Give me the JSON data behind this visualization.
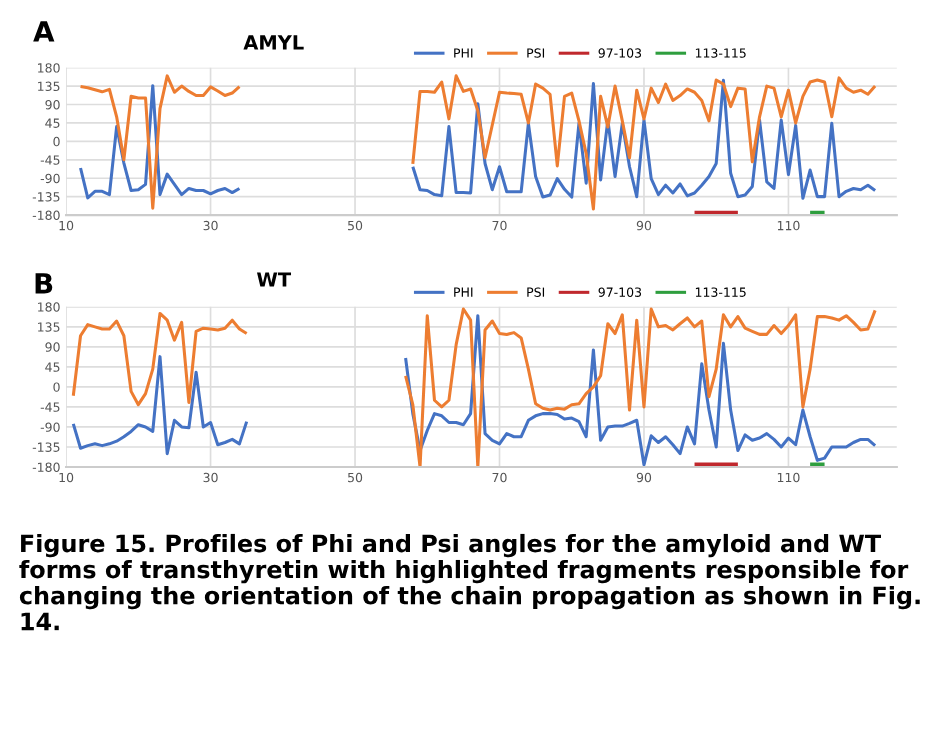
{
  "chart_data": [
    {
      "type": "line",
      "title": "AMYL",
      "annotations": [
        "A"
      ],
      "xlim": [
        10,
        125
      ],
      "xticks": [
        10,
        30,
        50,
        70,
        90,
        110
      ],
      "ylim": [
        -180,
        180
      ],
      "yticks": [
        -180,
        -135,
        -90,
        -45,
        0,
        45,
        90,
        135,
        180
      ],
      "grid": true,
      "legend": "top",
      "marker": "none",
      "line_style": "solid",
      "series": [
        {
          "name": "PHI",
          "color": "#4472c4",
          "x": [
            12,
            13,
            14,
            15,
            16,
            17,
            18,
            19,
            20,
            21,
            22,
            23,
            24,
            25,
            26,
            27,
            28,
            29,
            30,
            31,
            32,
            33,
            34,
            35,
            58,
            59,
            60,
            61,
            62,
            63,
            64,
            65,
            66,
            67,
            68,
            69,
            70,
            71,
            72,
            73,
            74,
            75,
            76,
            77,
            78,
            79,
            80,
            81,
            82,
            83,
            84,
            85,
            86,
            87,
            88,
            89,
            90,
            91,
            92,
            93,
            94,
            95,
            96,
            97,
            98,
            99,
            100,
            101,
            102,
            103,
            104,
            105,
            106,
            107,
            108,
            109,
            110,
            111,
            112,
            113,
            114,
            115,
            116,
            117,
            118,
            119,
            120,
            121,
            122
          ],
          "values": [
            -65,
            -138,
            -122,
            -122,
            -130,
            36,
            -53,
            -120,
            -118,
            -105,
            136,
            -130,
            -80,
            -105,
            -130,
            -115,
            -120,
            -120,
            -128,
            -120,
            -115,
            -125,
            -115,
            null,
            -62,
            -118,
            -120,
            -130,
            -133,
            36,
            -125,
            -125,
            -126,
            92,
            -54,
            -118,
            -62,
            -123,
            -123,
            -123,
            44,
            -86,
            -136,
            -131,
            -91,
            -117,
            -136,
            44,
            -102,
            141,
            -94,
            52,
            -86,
            44,
            -62,
            -135,
            52,
            -91,
            -130,
            -107,
            -126,
            -104,
            -133,
            -126,
            -107,
            -86,
            -54,
            149,
            -78,
            -135,
            -131,
            -110,
            52,
            -99,
            -115,
            52,
            -81,
            39,
            -139,
            -70,
            -135,
            -135,
            44,
            -135,
            -122,
            -115,
            -118,
            -107,
            -120
          ]
        },
        {
          "name": "PSI",
          "color": "#ed7d31",
          "x": [
            12,
            13,
            14,
            15,
            16,
            17,
            18,
            19,
            20,
            21,
            22,
            23,
            24,
            25,
            26,
            27,
            28,
            29,
            30,
            31,
            32,
            33,
            34,
            35,
            58,
            59,
            60,
            61,
            62,
            63,
            64,
            65,
            66,
            67,
            68,
            69,
            70,
            71,
            72,
            73,
            74,
            75,
            76,
            77,
            78,
            79,
            80,
            81,
            82,
            83,
            84,
            85,
            86,
            87,
            88,
            89,
            90,
            91,
            92,
            93,
            94,
            95,
            96,
            97,
            98,
            99,
            100,
            101,
            102,
            103,
            104,
            105,
            106,
            107,
            108,
            109,
            110,
            111,
            112,
            113,
            114,
            115,
            116,
            117,
            118,
            119,
            120,
            121,
            122
          ],
          "values": [
            134,
            131,
            126,
            121,
            127,
            60,
            -45,
            110,
            106,
            106,
            -163,
            80,
            160,
            120,
            135,
            122,
            112,
            112,
            133,
            123,
            112,
            118,
            134,
            null,
            -55,
            122,
            122,
            120,
            145,
            55,
            160,
            122,
            128,
            75,
            -40,
            40,
            120,
            118,
            117,
            115,
            45,
            140,
            130,
            115,
            -60,
            110,
            118,
            50,
            -30,
            -165,
            110,
            35,
            135,
            50,
            -40,
            125,
            55,
            130,
            95,
            140,
            100,
            112,
            128,
            120,
            100,
            50,
            150,
            140,
            85,
            130,
            128,
            -50,
            60,
            135,
            130,
            60,
            125,
            45,
            110,
            145,
            150,
            145,
            60,
            155,
            130,
            120,
            125,
            115,
            135
          ]
        },
        {
          "name": "97-103",
          "color": "#c0282d",
          "x": [
            97,
            103
          ],
          "values": [
            -180,
            -180
          ]
        },
        {
          "name": "113-115",
          "color": "#2e9e3e",
          "x": [
            113,
            115
          ],
          "values": [
            -180,
            -180
          ]
        }
      ]
    },
    {
      "type": "line",
      "title": "WT",
      "annotations": [
        "B",
        "Figure 15. Profiles of Phi and Psi angles for the amyloid and WT forms of transthyretin with highlighted fragments responsible for changing the orientation of the chain propagation as shown in Fig. 14."
      ],
      "xlim": [
        10,
        125
      ],
      "xticks": [
        10,
        30,
        50,
        70,
        90,
        110
      ],
      "ylim": [
        -180,
        180
      ],
      "yticks": [
        -180,
        -135,
        -90,
        -45,
        0,
        45,
        90,
        135,
        180
      ],
      "grid": true,
      "legend": "top",
      "marker": "none",
      "line_style": "solid",
      "series": [
        {
          "name": "PHI",
          "color": "#4472c4",
          "x": [
            11,
            12,
            13,
            14,
            15,
            16,
            17,
            18,
            19,
            20,
            21,
            22,
            23,
            24,
            25,
            26,
            27,
            28,
            29,
            30,
            31,
            32,
            33,
            34,
            35,
            36,
            57,
            58,
            59,
            60,
            61,
            62,
            63,
            64,
            65,
            66,
            67,
            68,
            69,
            70,
            71,
            72,
            73,
            74,
            75,
            76,
            77,
            78,
            79,
            80,
            81,
            82,
            83,
            84,
            85,
            86,
            87,
            88,
            89,
            90,
            91,
            92,
            93,
            94,
            95,
            96,
            97,
            98,
            99,
            100,
            101,
            102,
            103,
            104,
            105,
            106,
            107,
            108,
            109,
            110,
            111,
            112,
            113,
            114,
            115,
            116,
            117,
            118,
            119,
            120,
            121,
            122
          ],
          "values": [
            -83,
            -138,
            -132,
            -128,
            -132,
            -128,
            -122,
            -112,
            -100,
            -85,
            -90,
            -100,
            68,
            -150,
            -75,
            -90,
            -92,
            33,
            -90,
            -80,
            -130,
            -125,
            -118,
            -128,
            -78,
            null,
            65,
            -60,
            -143,
            -98,
            -60,
            -65,
            -80,
            -80,
            -85,
            -60,
            160,
            -105,
            -120,
            -128,
            -105,
            -112,
            -112,
            -75,
            -65,
            -60,
            -60,
            -62,
            -72,
            -70,
            -78,
            -112,
            83,
            -120,
            -90,
            -88,
            -88,
            -82,
            -75,
            -175,
            -110,
            -125,
            -112,
            -130,
            -150,
            -90,
            -128,
            52,
            -52,
            -135,
            98,
            -52,
            -143,
            -108,
            -120,
            -115,
            -105,
            -118,
            -135,
            -115,
            -130,
            -52,
            -112,
            -165,
            -160,
            -135,
            -135,
            -135,
            -125,
            -118,
            -118,
            -132
          ]
        },
        {
          "name": "PSI",
          "color": "#ed7d31",
          "x": [
            11,
            12,
            13,
            14,
            15,
            16,
            17,
            18,
            19,
            20,
            21,
            22,
            23,
            24,
            25,
            26,
            27,
            28,
            29,
            30,
            31,
            32,
            33,
            34,
            35,
            36,
            57,
            58,
            59,
            60,
            61,
            62,
            63,
            64,
            65,
            66,
            67,
            68,
            69,
            70,
            71,
            72,
            73,
            74,
            75,
            76,
            77,
            78,
            79,
            80,
            81,
            82,
            83,
            84,
            85,
            86,
            87,
            88,
            89,
            90,
            91,
            92,
            93,
            94,
            95,
            96,
            97,
            98,
            99,
            100,
            101,
            102,
            103,
            104,
            105,
            106,
            107,
            108,
            109,
            110,
            111,
            112,
            113,
            114,
            115,
            116,
            117,
            118,
            119,
            120,
            121,
            122
          ],
          "values": [
            -20,
            115,
            140,
            135,
            130,
            130,
            148,
            115,
            -10,
            -40,
            -15,
            40,
            165,
            150,
            105,
            145,
            -35,
            125,
            132,
            130,
            128,
            132,
            150,
            130,
            120,
            null,
            25,
            -40,
            -180,
            160,
            -30,
            -45,
            -30,
            95,
            175,
            150,
            -180,
            128,
            148,
            120,
            118,
            122,
            110,
            40,
            -38,
            -48,
            -52,
            -48,
            -50,
            -40,
            -38,
            -15,
            0,
            25,
            142,
            120,
            162,
            -52,
            150,
            -45,
            175,
            135,
            138,
            128,
            142,
            155,
            135,
            148,
            -22,
            40,
            162,
            135,
            158,
            132,
            125,
            118,
            118,
            138,
            120,
            138,
            162,
            -45,
            40,
            158,
            158,
            155,
            150,
            160,
            145,
            128,
            130,
            172
          ]
        },
        {
          "name": "97-103",
          "color": "#c0282d",
          "x": [
            97,
            103
          ],
          "values": [
            -180,
            -180
          ]
        },
        {
          "name": "113-115",
          "color": "#2e9e3e",
          "x": [
            113,
            115
          ],
          "values": [
            -180,
            -180
          ]
        }
      ]
    }
  ]
}
